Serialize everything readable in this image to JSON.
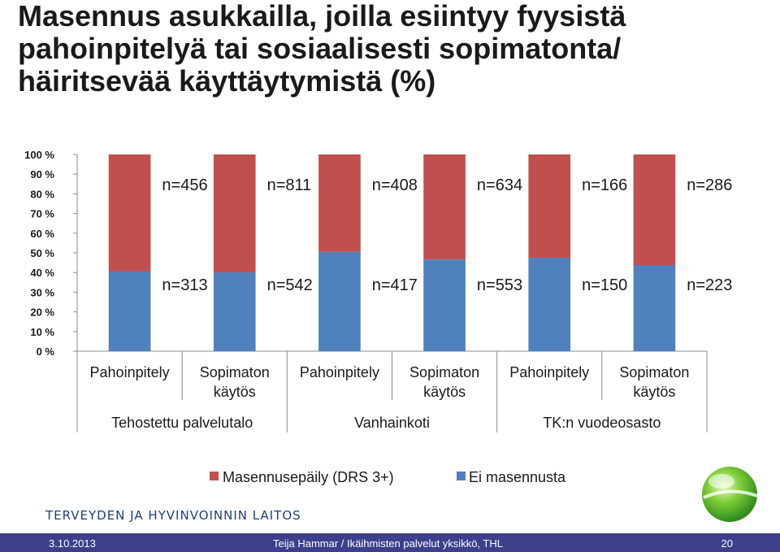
{
  "slide": {
    "title_lines": [
      "Masennus asukkailla, joilla esiintyy fyysistä",
      "pahoinpitelyä tai sosiaalisesti sopimatonta/",
      "häiritsevää käyttäytymistä (%)"
    ]
  },
  "chart_data": {
    "type": "bar",
    "stacked": true,
    "percent_stacked": true,
    "y_ticks": [
      "0 %",
      "10 %",
      "20 %",
      "30 %",
      "40 %",
      "50 %",
      "60 %",
      "70 %",
      "80 %",
      "90 %",
      "100 %"
    ],
    "ylim": [
      0,
      100
    ],
    "categories": [
      {
        "label": [
          "Pahoinpitely"
        ],
        "group": 0
      },
      {
        "label": [
          "Sopimaton",
          "käytös"
        ],
        "group": 0
      },
      {
        "label": [
          "Pahoinpitely"
        ],
        "group": 1
      },
      {
        "label": [
          "Sopimaton",
          "käytös"
        ],
        "group": 1
      },
      {
        "label": [
          "Pahoinpitely"
        ],
        "group": 2
      },
      {
        "label": [
          "Sopimaton",
          "käytös"
        ],
        "group": 2
      }
    ],
    "groups": [
      "Tehostettu palvelutalo",
      "Vanhainkoti",
      "TK:n vuodeosasto"
    ],
    "series": [
      {
        "name": "Ei masennusta",
        "color": "#4f81bd",
        "values": [
          40.7,
          40.1,
          50.5,
          46.6,
          47.5,
          43.8
        ],
        "labels": [
          "n=313",
          "n=542",
          "n=417",
          "n=553",
          "n=150",
          "n=223"
        ]
      },
      {
        "name": "Masennusepäily (DRS 3+)",
        "color": "#c0504d",
        "values": [
          59.3,
          59.9,
          49.5,
          53.4,
          52.5,
          56.2
        ],
        "labels": [
          "n=456",
          "n=811",
          "n=408",
          "n=634",
          "n=166",
          "n=286"
        ]
      }
    ],
    "legend": {
      "placement": "bottom",
      "entries": [
        {
          "name": "Masennusepäily (DRS 3+)",
          "color": "#c0504d"
        },
        {
          "name": "Ei masennusta",
          "color": "#4f81bd"
        }
      ]
    },
    "grid": false
  },
  "footer": {
    "org_name": "TERVEYDEN JA HYVINVOINNIN LAITOS",
    "date": "3.10.2013",
    "author": "Teija Hammar / Ikäihmisten palvelut yksikkö, THL",
    "page": "20"
  }
}
